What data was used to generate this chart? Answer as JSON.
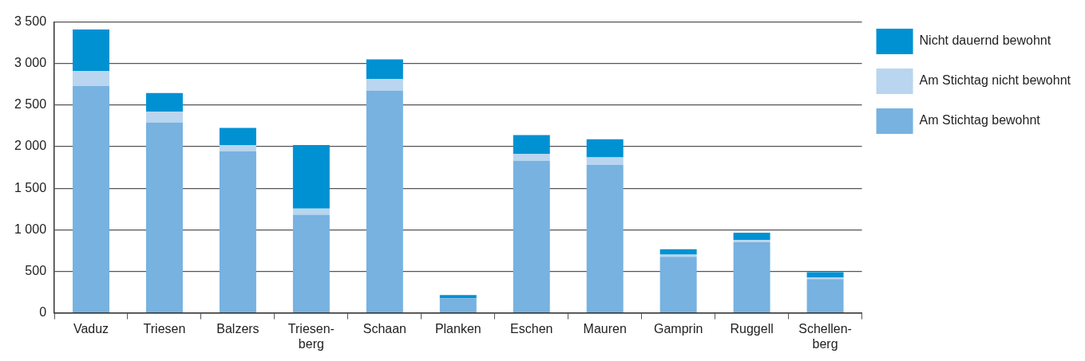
{
  "chart_data": {
    "type": "bar",
    "stacked": true,
    "categories": [
      "Vaduz",
      "Triesen",
      "Balzers",
      "Triesen-\nberg",
      "Schaan",
      "Planken",
      "Eschen",
      "Mauren",
      "Gamprin",
      "Ruggell",
      "Schellen-\nberg"
    ],
    "series": [
      {
        "name": "Am Stichtag bewohnt",
        "color": "#77b2e0",
        "values": [
          2730,
          2290,
          1945,
          1180,
          2675,
          175,
          1830,
          1780,
          675,
          850,
          405
        ]
      },
      {
        "name": "Am Stichtag nicht bewohnt",
        "color": "#b9d5ef",
        "values": [
          180,
          130,
          75,
          75,
          140,
          null,
          85,
          90,
          25,
          25,
          20
        ]
      },
      {
        "name": "Nicht dauernd bewohnt",
        "color": "#0091d3",
        "values": [
          500,
          225,
          205,
          765,
          235,
          40,
          225,
          220,
          65,
          90,
          65
        ]
      }
    ],
    "ylim": [
      0,
      3500
    ],
    "yticks": [
      0,
      {
        "value": 500,
        "label": "500"
      },
      {
        "value": 1000,
        "label": "1 000"
      },
      {
        "value": 1500,
        "label": "1 500"
      },
      {
        "value": 2000,
        "label": "2 000"
      },
      {
        "value": 2500,
        "label": "2 500"
      },
      {
        "value": 3000,
        "label": "3 000"
      },
      {
        "value": 3500,
        "label": "3 500"
      }
    ],
    "grid": "y",
    "legend": "right"
  }
}
